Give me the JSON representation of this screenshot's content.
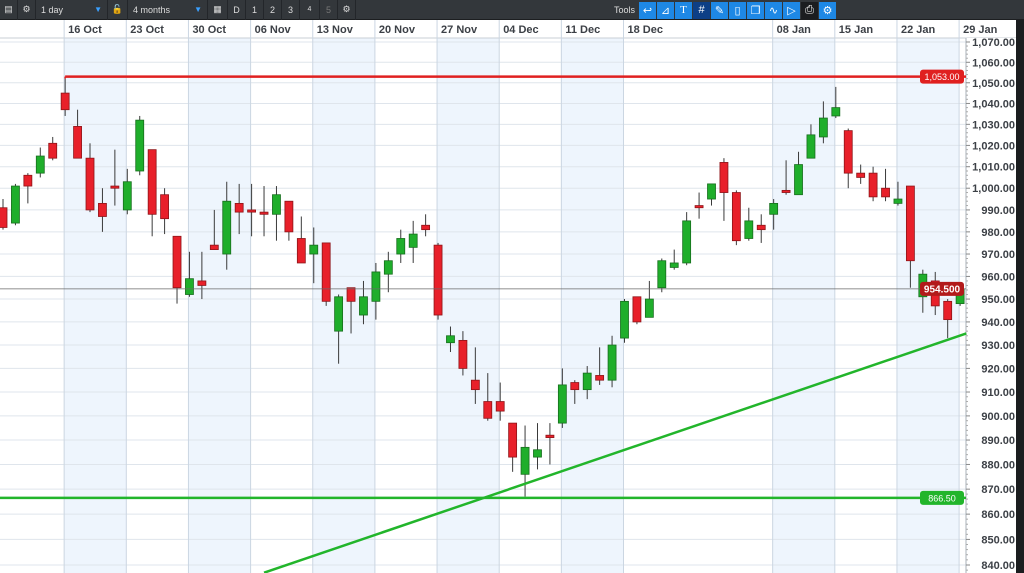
{
  "toolbar": {
    "interval": "1 day",
    "range": "4 months",
    "periods": [
      "D",
      "1",
      "2",
      "3",
      "4",
      "5"
    ],
    "tools_label": "Tools",
    "tool_icons": [
      "undo-arrow-icon",
      "trendline-icon",
      "text-icon",
      "grid-icon",
      "paint-icon",
      "candle-type-icon",
      "windows-icon",
      "indicators-icon",
      "label-icon",
      "print-icon",
      "settings-icon"
    ]
  },
  "colors": {
    "up": "#1fae2b",
    "down": "#e8202a",
    "resistance": "#e02020",
    "support": "#22b52b",
    "trendline": "#22b52b",
    "last_price": "#b21a1a",
    "band": "#eef5fd"
  },
  "chart_data": {
    "type": "candlestick",
    "y_scale": "log",
    "ylim": [
      837,
      1072
    ],
    "grid": true,
    "y_ticks": [
      "1,070.00",
      "1,060.00",
      "1,050.00",
      "1,040.00",
      "1,030.00",
      "1,020.00",
      "1,010.00",
      "1,000.00",
      "990.00",
      "980.00",
      "970.00",
      "960.00",
      "950.00",
      "940.00",
      "930.00",
      "920.00",
      "910.00",
      "900.00",
      "890.00",
      "880.00",
      "870.00",
      "860.00",
      "850.00",
      "840.00"
    ],
    "y_tick_values": [
      1070,
      1060,
      1050,
      1040,
      1030,
      1020,
      1010,
      1000,
      990,
      980,
      970,
      960,
      950,
      940,
      930,
      920,
      910,
      900,
      890,
      880,
      870,
      860,
      850,
      840
    ],
    "x_ticks": [
      {
        "label": "16 Oct",
        "bar": 5
      },
      {
        "label": "23 Oct",
        "bar": 10
      },
      {
        "label": "30 Oct",
        "bar": 15
      },
      {
        "label": "06 Nov",
        "bar": 20
      },
      {
        "label": "13 Nov",
        "bar": 25
      },
      {
        "label": "20 Nov",
        "bar": 30
      },
      {
        "label": "27 Nov",
        "bar": 35
      },
      {
        "label": "04 Dec",
        "bar": 40
      },
      {
        "label": "11 Dec",
        "bar": 45
      },
      {
        "label": "18 Dec",
        "bar": 50
      },
      {
        "label": "08 Jan",
        "bar": 62
      },
      {
        "label": "15 Jan",
        "bar": 67
      },
      {
        "label": "22 Jan",
        "bar": 72
      },
      {
        "label": "29 Jan",
        "bar": 77
      }
    ],
    "ohlc": [
      [
        991,
        995,
        981,
        982
      ],
      [
        984,
        1002,
        983,
        1001
      ],
      [
        1006,
        1007,
        993,
        1001
      ],
      [
        1007,
        1019,
        1005,
        1015
      ],
      [
        1021,
        1024,
        1013,
        1014
      ],
      [
        1045,
        1052,
        1034,
        1037
      ],
      [
        1029,
        1037,
        1014,
        1014
      ],
      [
        1014,
        1021,
        989,
        990
      ],
      [
        993,
        1000,
        980,
        987
      ],
      [
        1001,
        1018,
        992,
        1000
      ],
      [
        990,
        1009,
        988,
        1003
      ],
      [
        1008,
        1034,
        1006,
        1032
      ],
      [
        1018,
        1018,
        978,
        988
      ],
      [
        997,
        1000,
        979,
        986
      ],
      [
        978,
        978,
        948,
        955
      ],
      [
        952,
        971,
        951,
        959
      ],
      [
        958,
        971,
        950,
        956
      ],
      [
        974,
        990,
        972,
        972
      ],
      [
        970,
        1003,
        963,
        994
      ],
      [
        993,
        1002,
        979,
        989
      ],
      [
        990,
        1002,
        978,
        989
      ],
      [
        989,
        1001,
        978,
        988
      ],
      [
        988,
        1001,
        976,
        997
      ],
      [
        994,
        994,
        976,
        980
      ],
      [
        977,
        987,
        966,
        966
      ],
      [
        970,
        982,
        957,
        974
      ],
      [
        975,
        975,
        947,
        949
      ],
      [
        936,
        952,
        922,
        951
      ],
      [
        955,
        955,
        935,
        949
      ],
      [
        943,
        958,
        939,
        951
      ],
      [
        949,
        966,
        941,
        962
      ],
      [
        961,
        971,
        953,
        967
      ],
      [
        970,
        981,
        966,
        977
      ],
      [
        973,
        985,
        966,
        979
      ],
      [
        983,
        988,
        978,
        981
      ],
      [
        974,
        975,
        941,
        943
      ],
      [
        931,
        938,
        927,
        934
      ],
      [
        932,
        936,
        917,
        920
      ],
      [
        915,
        929,
        905,
        911
      ],
      [
        906,
        918,
        898,
        899
      ],
      [
        906,
        914,
        898,
        902
      ],
      [
        897,
        897,
        877,
        883
      ],
      [
        876,
        896,
        867,
        887
      ],
      [
        883,
        897,
        878,
        886
      ],
      [
        892,
        897,
        880,
        891
      ],
      [
        897,
        920,
        895,
        913
      ],
      [
        914,
        915,
        905,
        911
      ],
      [
        911,
        921,
        907,
        918
      ],
      [
        917,
        929,
        913,
        915
      ],
      [
        915,
        934,
        912,
        930
      ],
      [
        933,
        950,
        931,
        949
      ],
      [
        951,
        951,
        939,
        940
      ],
      [
        942,
        958,
        942,
        950
      ],
      [
        955,
        968,
        953,
        967
      ],
      [
        964,
        972,
        963,
        966
      ],
      [
        966,
        989,
        965,
        985
      ],
      [
        992,
        998,
        986,
        991
      ],
      [
        995,
        1002,
        992,
        1002
      ],
      [
        1012,
        1014,
        985,
        998
      ],
      [
        998,
        999,
        974,
        976
      ],
      [
        977,
        991,
        976,
        985
      ],
      [
        983,
        988,
        975,
        981
      ],
      [
        988,
        995,
        981,
        993
      ],
      [
        999,
        1013,
        997,
        998
      ],
      [
        997,
        1017,
        997,
        1011
      ],
      [
        1014,
        1030,
        1014,
        1025
      ],
      [
        1024,
        1041,
        1021,
        1033
      ],
      [
        1034,
        1048,
        1033,
        1038
      ],
      [
        1027,
        1028,
        1000,
        1007
      ],
      [
        1007,
        1011,
        1002,
        1005
      ],
      [
        1007,
        1010,
        994,
        996
      ],
      [
        1000,
        1009,
        994,
        996
      ],
      [
        993,
        1003,
        992,
        995
      ],
      [
        1001,
        1001,
        955,
        967
      ],
      [
        951,
        963,
        944,
        961
      ],
      [
        958,
        962,
        943,
        947
      ],
      [
        949,
        950,
        933,
        941
      ],
      [
        948,
        957,
        947,
        954.5
      ]
    ],
    "horizontal_lines": [
      {
        "value": 1053.0,
        "label": "1,053.00",
        "color": "resistance"
      },
      {
        "value": 866.5,
        "label": "866.50",
        "color": "support"
      },
      {
        "value": 954.5,
        "label": "954.500",
        "color": "last_price"
      }
    ],
    "trendline": {
      "from": {
        "bar": 21,
        "price": 837
      },
      "to": {
        "bar": 77.5,
        "price": 935
      }
    }
  }
}
